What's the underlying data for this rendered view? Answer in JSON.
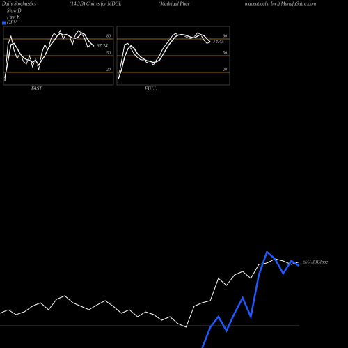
{
  "header": {
    "title": "Daily Stochastics",
    "subtitle": "(14,3,3) Charts for MDGL",
    "company_a": "(Madrigal Phar",
    "company_b": "maceuticals, Inc.) MunafaSutra.com"
  },
  "chart_data": [
    {
      "type": "line",
      "title": "FAST",
      "ylim": [
        0,
        100
      ],
      "yticks": [
        80,
        50,
        20
      ],
      "grid": true,
      "grid_color": "#c8871a",
      "series": [
        {
          "name": "Fast K",
          "color": "#ffffff",
          "values": [
            5,
            70,
            85,
            60,
            45,
            55,
            40,
            35,
            50,
            30,
            45,
            25,
            55,
            70,
            60,
            80,
            90,
            85,
            95,
            80,
            90,
            85,
            70,
            88,
            95,
            90,
            80,
            65,
            70,
            67.24
          ]
        },
        {
          "name": "Slow D",
          "color": "#ffffff",
          "values": [
            10,
            40,
            70,
            72,
            63,
            53,
            47,
            43,
            42,
            38,
            42,
            33,
            42,
            50,
            62,
            70,
            77,
            85,
            90,
            87,
            88,
            85,
            82,
            81,
            84,
            91,
            88,
            78,
            72,
            67
          ]
        }
      ]
    },
    {
      "type": "line",
      "title": "FULL",
      "ylim": [
        0,
        100
      ],
      "yticks": [
        80,
        50,
        20
      ],
      "grid": true,
      "grid_color": "#c8871a",
      "series": [
        {
          "name": "Fast K",
          "color": "#ffffff",
          "values": [
            10,
            40,
            70,
            72,
            63,
            53,
            47,
            43,
            42,
            38,
            42,
            33,
            42,
            50,
            62,
            70,
            77,
            85,
            90,
            87,
            88,
            85,
            82,
            81,
            84,
            91,
            88,
            78,
            72,
            74.45
          ]
        },
        {
          "name": "Slow D",
          "color": "#ffffff",
          "values": [
            8,
            25,
            48,
            62,
            68,
            63,
            54,
            48,
            44,
            41,
            40,
            38,
            39,
            42,
            51,
            61,
            70,
            77,
            84,
            87,
            88,
            87,
            85,
            83,
            82,
            85,
            88,
            86,
            80,
            75
          ]
        }
      ]
    },
    {
      "type": "line",
      "ylim": [
        350,
        610
      ],
      "y2lim": [
        0,
        140
      ],
      "series": [
        {
          "name": "Close",
          "color": "#ffffff",
          "values": [
            430,
            440,
            426,
            434,
            450,
            460,
            440,
            470,
            480,
            460,
            450,
            440,
            454,
            466,
            450,
            430,
            440,
            420,
            434,
            426,
            410,
            420,
            400,
            390,
            450,
            460,
            466,
            530,
            510,
            540,
            550,
            530,
            570,
            574,
            586,
            580,
            570,
            577.3
          ],
          "value_labels": [
            null,
            null,
            null,
            null,
            null,
            null,
            null,
            null,
            null,
            null,
            null,
            null,
            null,
            null,
            null,
            null,
            null,
            null,
            null,
            null,
            null,
            null,
            null,
            null,
            null,
            null,
            null,
            null,
            null,
            null,
            null,
            null,
            null,
            null,
            null,
            null,
            null,
            "577.30"
          ]
        },
        {
          "name": "OBV",
          "color": "#1e5bff",
          "axis": "y2",
          "values": [
            null,
            null,
            null,
            null,
            null,
            null,
            null,
            null,
            null,
            null,
            null,
            null,
            null,
            null,
            null,
            null,
            null,
            null,
            null,
            null,
            null,
            null,
            null,
            null,
            null,
            0,
            30,
            45,
            25,
            50,
            72,
            45,
            105,
            138,
            128,
            107,
            125,
            118
          ]
        }
      ]
    }
  ]
}
